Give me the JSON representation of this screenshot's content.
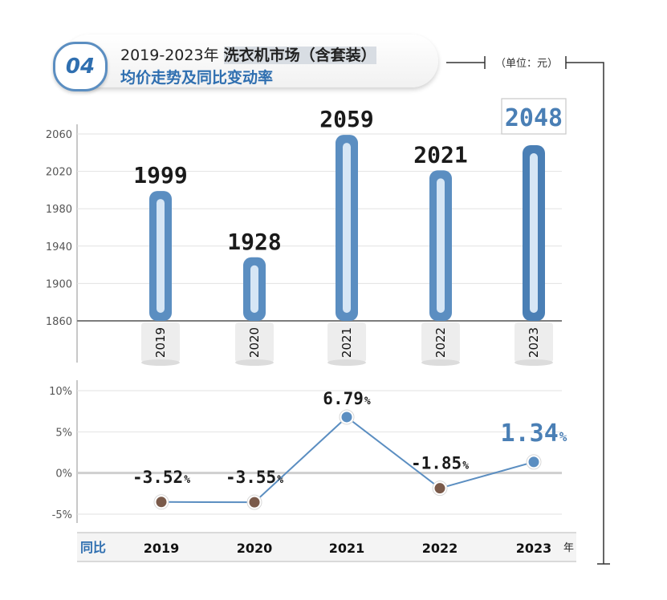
{
  "header": {
    "badge": "04",
    "title_prefix": "2019-2023年 ",
    "title_highlight": "洗衣机市场（含套装）",
    "subtitle": "均价走势及同比变动率",
    "unit": "（单位：元）"
  },
  "chart_data": [
    {
      "type": "bar",
      "categories": [
        "2019",
        "2020",
        "2021",
        "2022",
        "2023"
      ],
      "values": [
        1999,
        1928,
        2059,
        2021,
        2048
      ],
      "value_labels": [
        "1999",
        "1928",
        "2059",
        "2021",
        "2048"
      ],
      "ylim": [
        1860,
        2060
      ],
      "yticks": [
        1860,
        1900,
        1940,
        1980,
        2020,
        2060
      ],
      "ytick_labels": [
        "1860",
        "1900",
        "1940",
        "1980",
        "2020",
        "2060"
      ],
      "grid": true,
      "bar_color": "#5b8ec1",
      "bar_inner_color": "#d6e6f5",
      "highlight_index": 4,
      "highlight_color": "#4a7fb5"
    },
    {
      "type": "line",
      "categories": [
        "2019",
        "2020",
        "2021",
        "2022",
        "2023"
      ],
      "values": [
        -3.52,
        -3.55,
        6.79,
        -1.85,
        1.34
      ],
      "value_labels": [
        "-3.52",
        "-3.55",
        "6.79",
        "-1.85",
        "1.34"
      ],
      "value_suffix": "%",
      "ylim": [
        -5,
        10
      ],
      "yticks": [
        -5,
        0,
        5,
        10
      ],
      "ytick_labels": [
        "-5%",
        "0%",
        "5%",
        "10%"
      ],
      "grid": true,
      "line_color": "#5b8ec1",
      "point_colors": [
        "#7a5a4a",
        "#7a5a4a",
        "#5b8ec1",
        "#7a5a4a",
        "#5b8ec1"
      ],
      "highlight_index": 4,
      "highlight_color": "#4a7fb5"
    }
  ],
  "footer": {
    "row_label": "同比",
    "years": [
      "2019",
      "2020",
      "2021",
      "2022",
      "2023"
    ],
    "year_unit": "年"
  }
}
